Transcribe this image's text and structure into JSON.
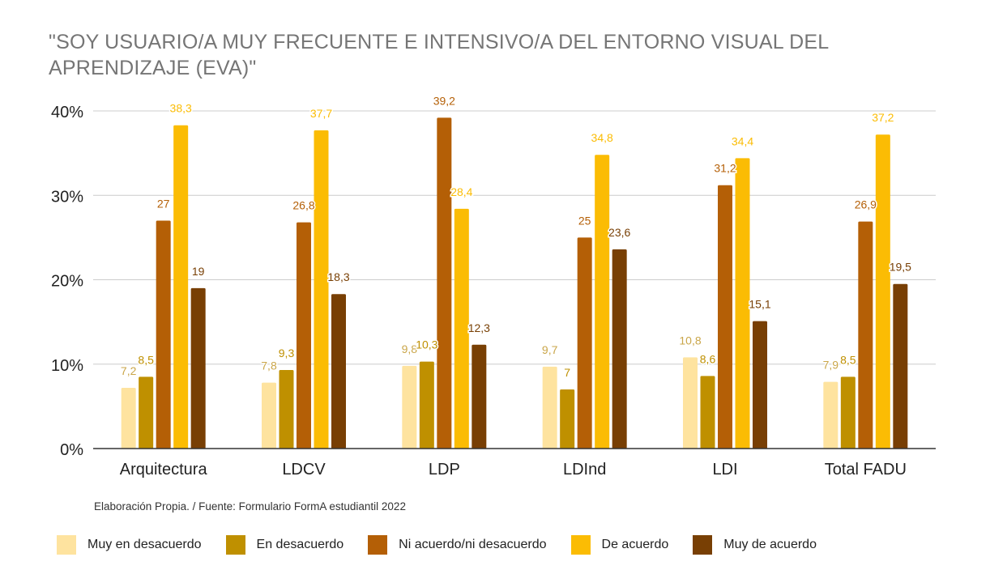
{
  "chart_data": {
    "type": "bar",
    "title": "\"SOY USUARIO/A MUY FRECUENTE E INTENSIVO/A DEL ENTORNO VISUAL DEL APRENDIZAJE (EVA)\"",
    "categories": [
      "Arquitectura",
      "LDCV",
      "LDP",
      "LDInd",
      "LDI",
      "Total FADU"
    ],
    "series": [
      {
        "name": "Muy en desacuerdo",
        "color": "#fee39f",
        "values": [
          7.2,
          7.8,
          9.8,
          9.7,
          10.8,
          7.9
        ],
        "labels": [
          "7,2",
          "7,8",
          "9,8",
          "9,7",
          "10,8",
          "7,9"
        ]
      },
      {
        "name": "En desacuerdo",
        "color": "#bf9000",
        "values": [
          8.5,
          9.3,
          10.3,
          7,
          8.6,
          8.5
        ],
        "labels": [
          "8,5",
          "9,3",
          "10,3",
          "7",
          "8,6",
          "8,5"
        ]
      },
      {
        "name": "Ni acuerdo/ni desacuerdo",
        "color": "#b45f06",
        "values": [
          27,
          26.8,
          39.2,
          25,
          31.2,
          26.9
        ],
        "labels": [
          "27",
          "26,8",
          "39,2",
          "25",
          "31,2",
          "26,9"
        ]
      },
      {
        "name": "De acuerdo",
        "color": "#fbbc04",
        "values": [
          38.3,
          37.7,
          28.4,
          34.8,
          34.4,
          37.2
        ],
        "labels": [
          "38,3",
          "37,7",
          "28,4",
          "34,8",
          "34,4",
          "37,2"
        ]
      },
      {
        "name": "Muy de acuerdo",
        "color": "#783f04",
        "values": [
          19,
          18.3,
          12.3,
          23.6,
          15.1,
          19.5
        ],
        "labels": [
          "19",
          "18,3",
          "12,3",
          "23,6",
          "15,1",
          "19,5"
        ]
      }
    ],
    "yticks": [
      "0%",
      "10%",
      "20%",
      "30%",
      "40%"
    ],
    "ylim": [
      0,
      40
    ],
    "grid": true,
    "legend_position": "bottom"
  },
  "source_note": "Elaboración Propia. / Fuente: Formulario FormA estudiantil 2022"
}
